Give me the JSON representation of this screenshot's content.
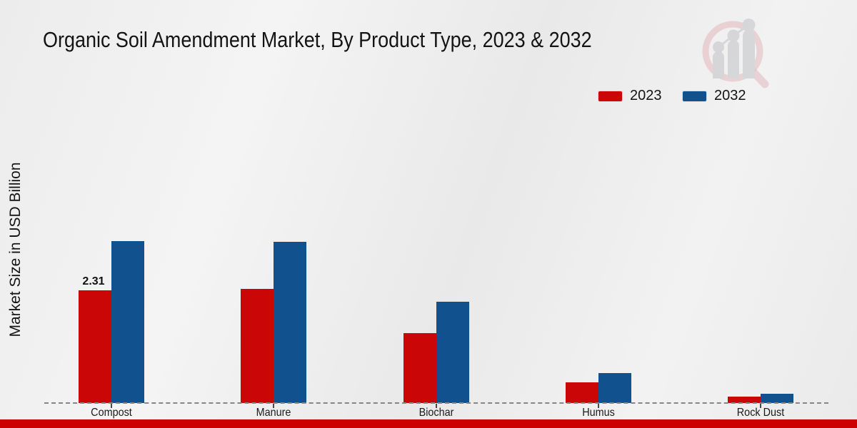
{
  "title": "Organic Soil Amendment Market, By Product Type, 2023 & 2032",
  "y_axis_label": "Market Size in USD Billion",
  "legend": {
    "items": [
      {
        "label": "2023",
        "color": "#cb0606"
      },
      {
        "label": "2032",
        "color": "#10518e"
      }
    ]
  },
  "colors": {
    "series_2023": "#cb0606",
    "series_2032": "#10518e",
    "footer_bar": "#cc0000",
    "axis_dash": "#868686",
    "background": "#ededed",
    "watermark_ring": "#d89099",
    "watermark_bars": "#c5c6ca"
  },
  "watermark": {
    "name": "magnifier-bar-chart-logo"
  },
  "chart_data": {
    "type": "bar",
    "categories": [
      "Compost",
      "Manure",
      "Biochar",
      "Humus",
      "Rock Dust"
    ],
    "series": [
      {
        "name": "2023",
        "color": "#cb0606",
        "values": [
          2.31,
          2.34,
          1.43,
          0.42,
          0.13
        ]
      },
      {
        "name": "2032",
        "color": "#10518e",
        "values": [
          3.32,
          3.31,
          2.07,
          0.61,
          0.19
        ]
      }
    ],
    "data_labels": [
      {
        "category": "Compost",
        "series": "2023",
        "text": "2.31"
      }
    ],
    "title": "Organic Soil Amendment Market, By Product Type, 2023 & 2032",
    "xlabel": "",
    "ylabel": "Market Size in USD Billion",
    "ylim": [
      0,
      3.9
    ],
    "grid": false,
    "legend_position": "top-right",
    "baseline_style": "dashed"
  }
}
